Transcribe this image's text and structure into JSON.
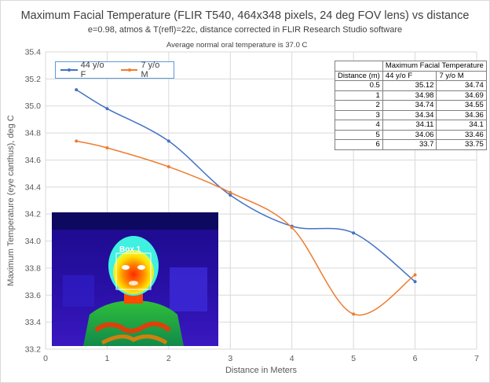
{
  "chart_data": {
    "type": "line",
    "title": "Maximum Facial Temperature (FLIR T540, 464x348 pixels, 24 deg FOV lens) vs distance",
    "subtitle": "e=0.98, atmos & T(refl)=22c, distance corrected in FLIR Research Studio software",
    "annotation": "Average normal oral temperature is 37.0 C",
    "xlabel": "Distance in Meters",
    "ylabel": "Maximum Temperature (eye canthus), deg C",
    "xlim": [
      0,
      7
    ],
    "ylim": [
      33.2,
      35.4
    ],
    "x_ticks": [
      "0",
      "1",
      "2",
      "3",
      "4",
      "5",
      "6",
      "7"
    ],
    "y_ticks": [
      "33.2",
      "33.4",
      "33.6",
      "33.8",
      "34.0",
      "34.2",
      "34.4",
      "34.6",
      "34.8",
      "35.0",
      "35.2",
      "35.4"
    ],
    "grid": true,
    "legend_position": "top-left",
    "series": [
      {
        "name": "44 y/o F",
        "color": "#4472c4",
        "x": [
          0.5,
          1,
          2,
          3,
          4,
          5,
          6
        ],
        "y": [
          35.12,
          34.98,
          34.74,
          34.34,
          34.11,
          34.06,
          33.7
        ]
      },
      {
        "name": "7 y/o M",
        "color": "#ed7d31",
        "x": [
          0.5,
          1,
          2,
          3,
          4,
          5,
          6
        ],
        "y": [
          34.74,
          34.69,
          34.55,
          34.36,
          34.1,
          33.46,
          33.75
        ]
      }
    ],
    "table": {
      "group_header": "Maximum Facial Temperature",
      "col_headers": [
        "Distance (m)",
        "44 y/o F",
        "7 y/o M"
      ],
      "rows": [
        [
          "0.5",
          "35.12",
          "34.74"
        ],
        [
          "1",
          "34.98",
          "34.69"
        ],
        [
          "2",
          "34.74",
          "34.55"
        ],
        [
          "3",
          "34.34",
          "34.36"
        ],
        [
          "4",
          "34.11",
          "34.1"
        ],
        [
          "5",
          "34.06",
          "33.46"
        ],
        [
          "6",
          "33.7",
          "33.75"
        ]
      ]
    },
    "inset_image": {
      "label": "Box 1"
    }
  }
}
